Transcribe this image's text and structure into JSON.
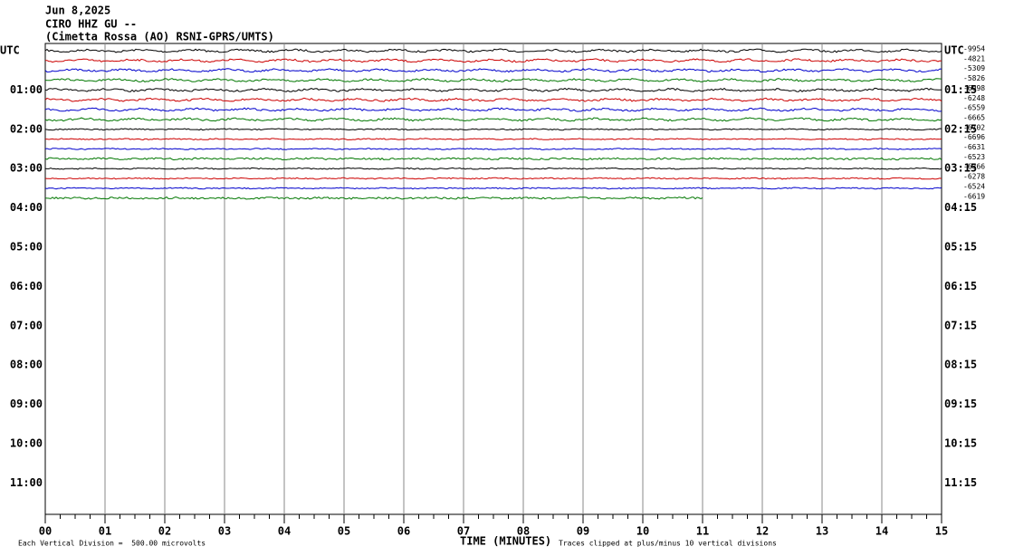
{
  "header": {
    "date": "Jun 8,2025",
    "station": "CIRO HHZ GU --",
    "location": "(Cimetta Rossa (AO) RSNI-GPRS/UMTS)"
  },
  "left_labels": [
    "UTC",
    "01:00",
    "02:00",
    "03:00",
    "04:00",
    "05:00",
    "06:00",
    "07:00",
    "08:00",
    "09:00",
    "10:00",
    "11:00"
  ],
  "right_labels": [
    "UTC",
    "01:15",
    "02:15",
    "03:15",
    "04:15",
    "05:15",
    "06:15",
    "07:15",
    "08:15",
    "09:15",
    "10:15",
    "11:15"
  ],
  "trace_offsets": [
    -9954,
    -4821,
    -5309,
    -5826,
    -6098,
    -6248,
    -6559,
    -6665,
    -6702,
    -6696,
    -6631,
    -6523,
    -6366,
    -6278,
    -6524,
    -6619
  ],
  "trace_colors": [
    "#000000",
    "#cc0000",
    "#0000cc",
    "#007700"
  ],
  "x_axis": {
    "title": "TIME (MINUTES)",
    "labels": [
      "00",
      "01",
      "02",
      "03",
      "04",
      "05",
      "06",
      "07",
      "08",
      "09",
      "10",
      "11",
      "12",
      "13",
      "14",
      "15"
    ]
  },
  "footer": {
    "scale": "Each Vertical Division =  500.00 microvolts",
    "clip": "Traces clipped at plus/minus 10 vertical divisions"
  }
}
